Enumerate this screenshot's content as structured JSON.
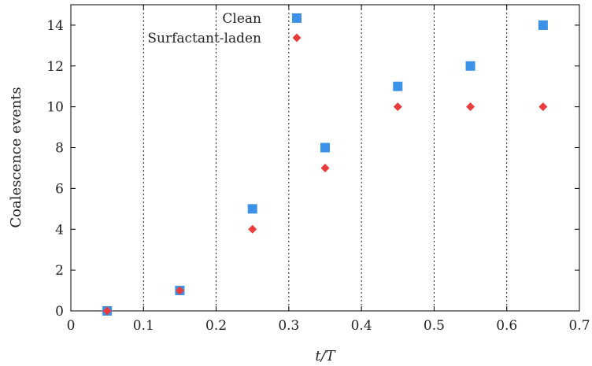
{
  "chart_data": {
    "type": "scatter",
    "title": "",
    "xlabel": "t/T",
    "ylabel": "Coalescence events",
    "xlim": [
      0,
      0.7
    ],
    "ylim": [
      0,
      15
    ],
    "xticks": [
      0,
      0.1,
      0.2,
      0.3,
      0.4,
      0.5,
      0.6,
      0.7
    ],
    "xtick_labels": [
      "0",
      "0.1",
      "0.2",
      "0.3",
      "0.4",
      "0.5",
      "0.6",
      "0.7"
    ],
    "yticks": [
      0,
      2,
      4,
      6,
      8,
      10,
      12,
      14
    ],
    "ytick_labels": [
      "0",
      "2",
      "4",
      "6",
      "8",
      "10",
      "12",
      "14"
    ],
    "grid": {
      "x": true,
      "y": false,
      "style": "dotted"
    },
    "legend_position": "top-center",
    "series": [
      {
        "name": "Clean",
        "marker": "square",
        "color": "#3b92e8",
        "x": [
          0.05,
          0.15,
          0.25,
          0.35,
          0.45,
          0.55,
          0.65
        ],
        "y": [
          0,
          1,
          5,
          8,
          11,
          12,
          14
        ]
      },
      {
        "name": "Surfactant-laden",
        "marker": "diamond",
        "color": "#ea3c3c",
        "x": [
          0.05,
          0.15,
          0.25,
          0.35,
          0.45,
          0.55,
          0.65
        ],
        "y": [
          0,
          1,
          4,
          7,
          10,
          10,
          10
        ]
      }
    ]
  }
}
